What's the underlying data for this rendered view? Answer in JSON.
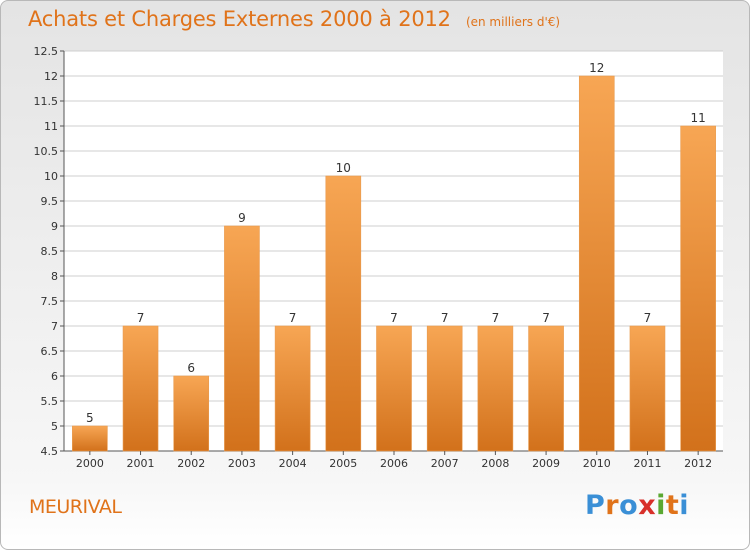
{
  "title": "Achats et Charges Externes 2000 à 2012",
  "unit_label": "(en milliers d'€)",
  "commune": "MEURIVAL",
  "logo": {
    "text": "Proxiti",
    "colors": [
      "#3a8fd6",
      "#e0731a",
      "#3a8fd6",
      "#d8302a",
      "#5aa832",
      "#e0731a",
      "#3a8fd6"
    ]
  },
  "colors": {
    "accent": "#e0731a",
    "bar_top": "#f7a654",
    "bar_bottom": "#d2711b",
    "grid": "#cfcfcf",
    "text": "#333333"
  },
  "chart_data": {
    "type": "bar",
    "title": "Achats et Charges Externes 2000 à 2012",
    "subtitle": "(en milliers d'€)",
    "xlabel": "",
    "ylabel": "",
    "categories": [
      "2000",
      "2001",
      "2002",
      "2003",
      "2004",
      "2005",
      "2006",
      "2007",
      "2008",
      "2009",
      "2010",
      "2011",
      "2012"
    ],
    "values": [
      5,
      7,
      6,
      9,
      7,
      10,
      7,
      7,
      7,
      7,
      12,
      7,
      11
    ],
    "data_labels": [
      "5",
      "7",
      "6",
      "9",
      "7",
      "10",
      "7",
      "7",
      "7",
      "7",
      "12",
      "7",
      "11"
    ],
    "yticks": [
      "4.5",
      "5",
      "5.5",
      "6",
      "6.5",
      "7",
      "7.5",
      "8",
      "8.5",
      "9",
      "9.5",
      "10",
      "10.5",
      "11",
      "11.5",
      "12",
      "12.5"
    ],
    "ylim": [
      4.5,
      12.5
    ],
    "grid": true,
    "legend": "none"
  }
}
